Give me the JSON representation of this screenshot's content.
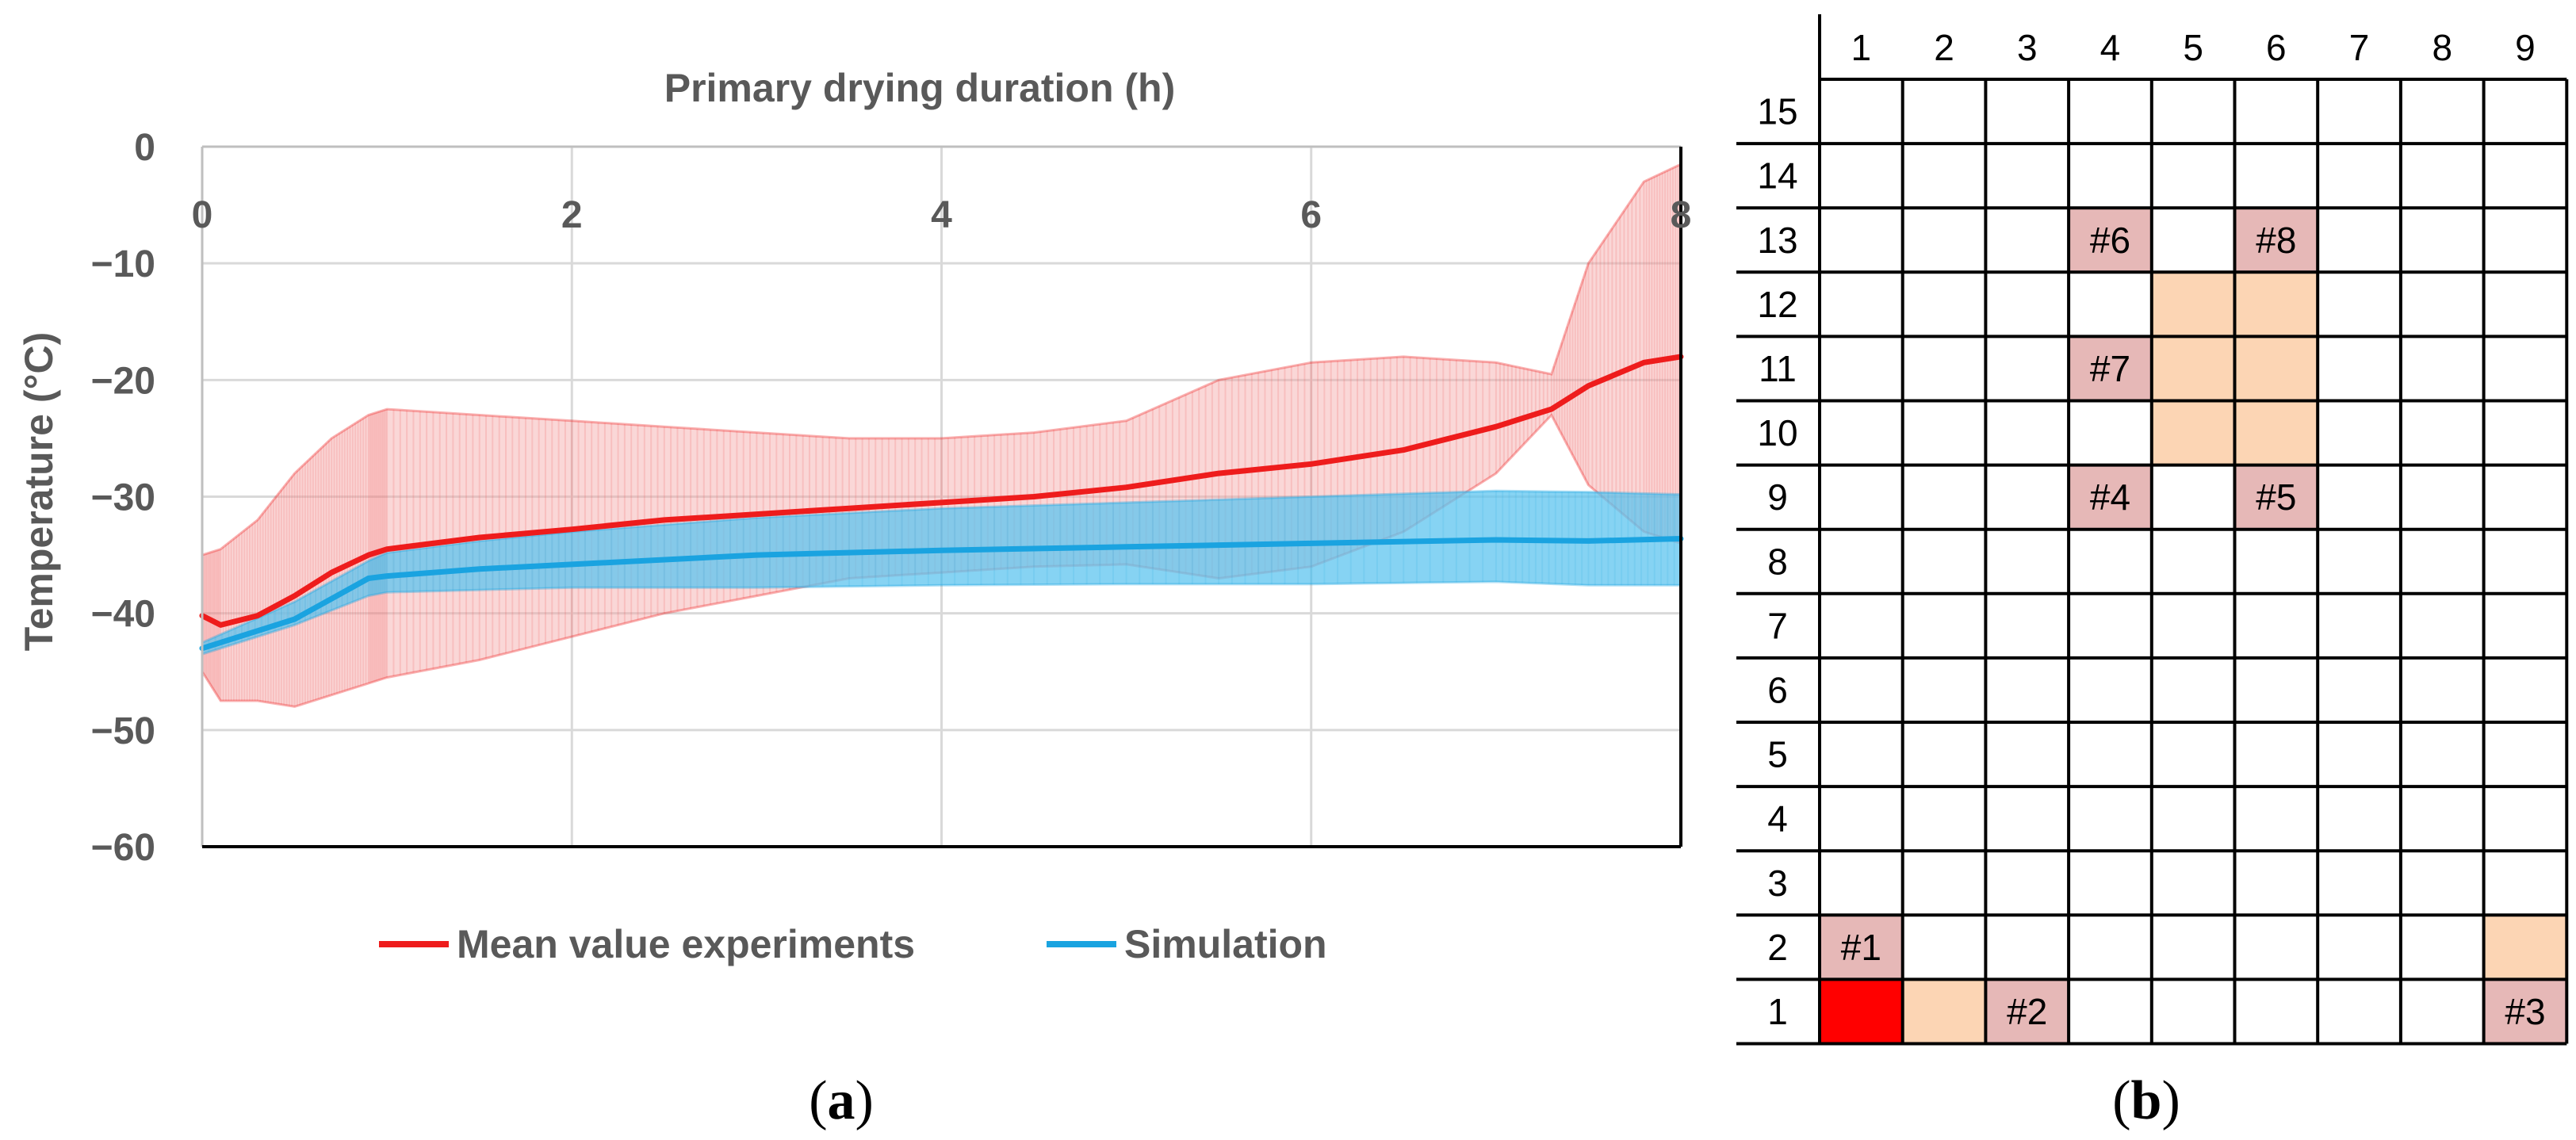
{
  "chart_data": [
    {
      "type": "line",
      "xlabel": "Primary drying duration (h)",
      "ylabel": "Temperature (°C)",
      "xlim": [
        0,
        8
      ],
      "ylim": [
        -60,
        0
      ],
      "x_ticks": [
        "0",
        "2",
        "4",
        "6",
        "8"
      ],
      "y_ticks": [
        "0",
        "−10",
        "−20",
        "−30",
        "−40",
        "−50",
        "−60"
      ],
      "grid": true,
      "legend_position": "bottom",
      "x_axis_position": "top",
      "series": [
        {
          "name": "Mean value experiments",
          "color": "#ee1c1c",
          "band_color": "#f4a6a6",
          "x": [
            0,
            0.1,
            0.3,
            0.5,
            0.7,
            0.9,
            1.0,
            1.5,
            2.0,
            2.5,
            3.0,
            3.5,
            4.0,
            4.5,
            5.0,
            5.5,
            6.0,
            6.5,
            7.0,
            7.3,
            7.5,
            7.8,
            8.0
          ],
          "y": [
            -40.2,
            -41.0,
            -40.2,
            -38.5,
            -36.5,
            -35.0,
            -34.5,
            -33.5,
            -32.8,
            -32.0,
            -31.5,
            -31.0,
            -30.5,
            -30.0,
            -29.2,
            -28.0,
            -27.2,
            -26.0,
            -24.0,
            -22.5,
            -20.5,
            -18.5,
            -18.0
          ],
          "upper": [
            -35.0,
            -34.5,
            -32.0,
            -28.0,
            -25.0,
            -23.0,
            -22.5,
            -23.0,
            -23.5,
            -24.0,
            -24.5,
            -25.0,
            -25.0,
            -24.5,
            -23.5,
            -20.0,
            -18.5,
            -18.0,
            -18.5,
            -19.5,
            -10.0,
            -3.0,
            -1.5
          ],
          "lower": [
            -45.0,
            -47.5,
            -47.5,
            -48.0,
            -47.0,
            -46.0,
            -45.5,
            -44.0,
            -42.0,
            -40.0,
            -38.5,
            -37.0,
            -36.5,
            -36.0,
            -35.8,
            -37.0,
            -36.0,
            -33.0,
            -28.0,
            -23.0,
            -29.0,
            -33.0,
            -34.0
          ]
        },
        {
          "name": "Simulation",
          "color": "#1aa3e0",
          "band_color": "#5ec4ef",
          "x": [
            0,
            0.5,
            0.9,
            1.0,
            1.5,
            2.0,
            3.0,
            4.0,
            5.0,
            6.0,
            7.0,
            7.5,
            8.0
          ],
          "y": [
            -43.0,
            -40.5,
            -37.0,
            -36.8,
            -36.2,
            -35.8,
            -35.0,
            -34.6,
            -34.3,
            -34.0,
            -33.7,
            -33.8,
            -33.6
          ],
          "upper": [
            -42.5,
            -39.0,
            -35.5,
            -34.8,
            -33.8,
            -33.0,
            -31.8,
            -31.0,
            -30.5,
            -30.0,
            -29.5,
            -29.6,
            -29.8
          ],
          "lower": [
            -43.5,
            -41.0,
            -38.5,
            -38.2,
            -38.0,
            -37.8,
            -37.8,
            -37.6,
            -37.5,
            -37.5,
            -37.3,
            -37.6,
            -37.6
          ]
        }
      ]
    },
    {
      "type": "heatmap",
      "columns": [
        "1",
        "2",
        "3",
        "4",
        "5",
        "6",
        "7",
        "8",
        "9"
      ],
      "rows": [
        "15",
        "14",
        "13",
        "12",
        "11",
        "10",
        "9",
        "8",
        "7",
        "6",
        "5",
        "4",
        "3",
        "2",
        "1"
      ],
      "cells": [
        {
          "row": 13,
          "col": 4,
          "label": "#6",
          "color": "#e6b8b7"
        },
        {
          "row": 13,
          "col": 6,
          "label": "#8",
          "color": "#e6b8b7"
        },
        {
          "row": 12,
          "col": 5,
          "label": "",
          "color": "#fcd5b4"
        },
        {
          "row": 12,
          "col": 6,
          "label": "",
          "color": "#fcd5b4"
        },
        {
          "row": 11,
          "col": 4,
          "label": "#7",
          "color": "#e6b8b7"
        },
        {
          "row": 11,
          "col": 5,
          "label": "",
          "color": "#fcd5b4"
        },
        {
          "row": 11,
          "col": 6,
          "label": "",
          "color": "#fcd5b4"
        },
        {
          "row": 10,
          "col": 5,
          "label": "",
          "color": "#fcd5b4"
        },
        {
          "row": 10,
          "col": 6,
          "label": "",
          "color": "#fcd5b4"
        },
        {
          "row": 9,
          "col": 4,
          "label": "#4",
          "color": "#e6b8b7"
        },
        {
          "row": 9,
          "col": 6,
          "label": "#5",
          "color": "#e6b8b7"
        },
        {
          "row": 2,
          "col": 1,
          "label": "#1",
          "color": "#e6b8b7"
        },
        {
          "row": 2,
          "col": 9,
          "label": "",
          "color": "#fcd5b4"
        },
        {
          "row": 1,
          "col": 1,
          "label": "",
          "color": "#ff0000"
        },
        {
          "row": 1,
          "col": 2,
          "label": "",
          "color": "#fcd5b4"
        },
        {
          "row": 1,
          "col": 3,
          "label": "#2",
          "color": "#e6b8b7"
        },
        {
          "row": 1,
          "col": 9,
          "label": "#3",
          "color": "#e6b8b7"
        }
      ]
    }
  ],
  "panels": {
    "a": {
      "open": "(",
      "letter": "a",
      "close": ")"
    },
    "b": {
      "open": "(",
      "letter": "b",
      "close": ")"
    }
  }
}
